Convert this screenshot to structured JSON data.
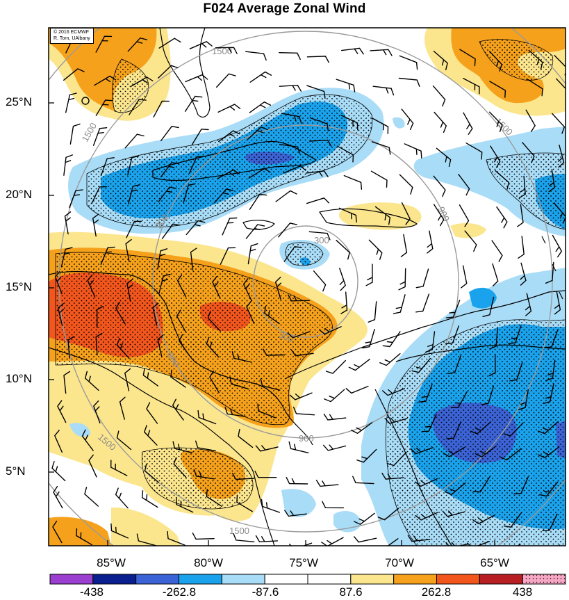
{
  "title": "F024 Average Zonal Wind",
  "credit": {
    "line1": "© 2016 ECMWF",
    "line2": "R. Torn, UAlbany"
  },
  "lat_labels": [
    "25°N",
    "20°N",
    "15°N",
    "10°N",
    "5°N"
  ],
  "lon_labels": [
    "85°W",
    "80°W",
    "75°W",
    "70°W",
    "65°W"
  ],
  "contour_labels": [
    "1500",
    "1500",
    "1500",
    "1500",
    "1500",
    "900",
    "900",
    "900",
    "900",
    "300",
    "300"
  ],
  "colorbar": {
    "labels": [
      "-438",
      "-262.8",
      "-87.6",
      "87.6",
      "262.8",
      "438"
    ],
    "colors": [
      "#9b3fd0",
      "#0a1f8f",
      "#3b63d6",
      "#1aa3ec",
      "#a9dcf7",
      "#ffffff",
      "#ffffff",
      "#fbe68e",
      "#f5a11c",
      "#f2561d",
      "#b71f23",
      "#f7a6c4"
    ]
  },
  "fill_colors": {
    "light_blue": "#a9dcf7",
    "blue": "#1aa3ec",
    "med_blue": "#3b63d6",
    "dark_blue": "#2b3db0",
    "light_yellow": "#fbe68e",
    "orange": "#f5a11c",
    "red": "#f2561d",
    "contour": "#9a9a9a"
  }
}
